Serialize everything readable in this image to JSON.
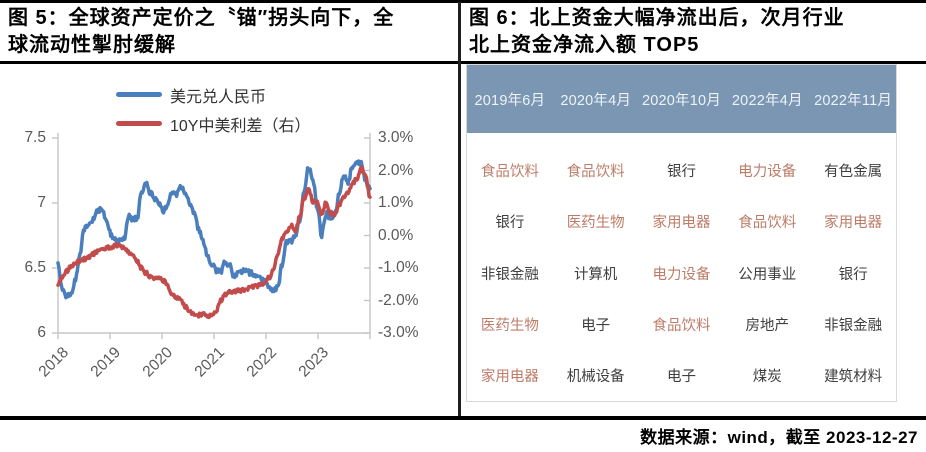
{
  "source_note": "数据来源：wind，截至 2023-12-27",
  "styles": {
    "series_blue": "#4a7ebc",
    "series_red": "#c24b4b",
    "axis_line": "#c6c6c6",
    "axis_label": "#595959",
    "table_header_bg": "#7b96b3",
    "table_header_text": "#eef3f8",
    "table_text": "#3f3f3f",
    "table_highlight_text": "#bd7c68",
    "title_text": "#000000"
  },
  "chart_data": [
    {
      "type": "line",
      "title": "图 5：全球资产定价之〝锚″拐头向下，全球流动性掣肘缓解",
      "x_tick_labels": [
        "2018",
        "2019",
        "2020",
        "2021",
        "2022",
        "2023"
      ],
      "x_start_year": 2018,
      "points_per_year": 12,
      "grid": false,
      "legend_position": "top",
      "left_axis": {
        "range": [
          6,
          7.5
        ],
        "ticks": [
          7.5,
          7,
          6.5,
          6
        ],
        "tick_labels": [
          "7.5",
          "7",
          "6.5",
          "6"
        ]
      },
      "right_axis": {
        "range": [
          -3,
          3
        ],
        "ticks": [
          3,
          2,
          1,
          0,
          -1,
          -2,
          -3
        ],
        "tick_labels": [
          "3.0%",
          "2.0%",
          "1.0%",
          "0.0%",
          "-1.0%",
          "-2.0%",
          "-3.0%"
        ]
      },
      "series": [
        {
          "name": "美元兑人民币",
          "axis": "left",
          "color": "#4a7ebc",
          "values": [
            6.53,
            6.34,
            6.28,
            6.3,
            6.41,
            6.62,
            6.8,
            6.84,
            6.87,
            6.94,
            6.95,
            6.88,
            6.76,
            6.72,
            6.71,
            6.72,
            6.9,
            6.88,
            6.88,
            7.09,
            7.15,
            7.08,
            7.03,
            7.0,
            6.93,
            7.0,
            7.09,
            7.07,
            7.13,
            7.08,
            7.0,
            6.91,
            6.8,
            6.7,
            6.6,
            6.53,
            6.48,
            6.47,
            6.56,
            6.52,
            6.44,
            6.46,
            6.48,
            6.47,
            6.46,
            6.44,
            6.42,
            6.4,
            6.36,
            6.33,
            6.35,
            6.52,
            6.7,
            6.7,
            6.74,
            6.86,
            7.1,
            7.28,
            7.18,
            6.97,
            6.75,
            6.92,
            6.89,
            6.91,
            7.07,
            7.22,
            7.16,
            7.28,
            7.31,
            7.31,
            7.16,
            7.11
          ]
        },
        {
          "name": "10Y中美利差（右）",
          "axis": "right",
          "color": "#c24b4b",
          "values": [
            -1.5,
            -1.28,
            -1.1,
            -0.95,
            -0.85,
            -0.78,
            -0.72,
            -0.68,
            -0.58,
            -0.48,
            -0.42,
            -0.38,
            -0.36,
            -0.32,
            -0.3,
            -0.38,
            -0.5,
            -0.65,
            -0.8,
            -1.0,
            -1.15,
            -1.28,
            -1.35,
            -1.3,
            -1.38,
            -1.55,
            -1.8,
            -1.9,
            -2.0,
            -2.2,
            -2.35,
            -2.4,
            -2.45,
            -2.42,
            -2.48,
            -2.42,
            -2.3,
            -2.0,
            -1.8,
            -1.75,
            -1.72,
            -1.7,
            -1.68,
            -1.64,
            -1.6,
            -1.55,
            -1.52,
            -1.48,
            -1.3,
            -1.05,
            -0.6,
            -0.1,
            0.1,
            0.3,
            0.15,
            0.55,
            1.15,
            1.45,
            1.05,
            1.0,
            0.65,
            1.0,
            0.7,
            0.65,
            0.95,
            1.15,
            1.3,
            1.6,
            1.75,
            2.08,
            1.8,
            1.18
          ]
        }
      ]
    },
    {
      "type": "table",
      "title": "图 6：北上资金大幅净流出后，次月行业北上资金净流入额 TOP5",
      "columns": [
        "2019年6月",
        "2020年4月",
        "2020年10月",
        "2022年4月",
        "2022年11月"
      ],
      "rows": [
        [
          "食品饮料",
          "食品饮料",
          "银行",
          "电力设备",
          "有色金属"
        ],
        [
          "银行",
          "医药生物",
          "家用电器",
          "食品饮料",
          "家用电器"
        ],
        [
          "非银金融",
          "计算机",
          "电力设备",
          "公用事业",
          "银行"
        ],
        [
          "医药生物",
          "电子",
          "食品饮料",
          "房地产",
          "非银金融"
        ],
        [
          "家用电器",
          "机械设备",
          "电子",
          "煤炭",
          "建筑材料"
        ]
      ],
      "highlighted_cells": [
        [
          0,
          0
        ],
        [
          0,
          1
        ],
        [
          0,
          3
        ],
        [
          1,
          1
        ],
        [
          1,
          2
        ],
        [
          1,
          3
        ],
        [
          1,
          4
        ],
        [
          2,
          2
        ],
        [
          3,
          0
        ],
        [
          3,
          2
        ],
        [
          4,
          0
        ]
      ]
    }
  ]
}
